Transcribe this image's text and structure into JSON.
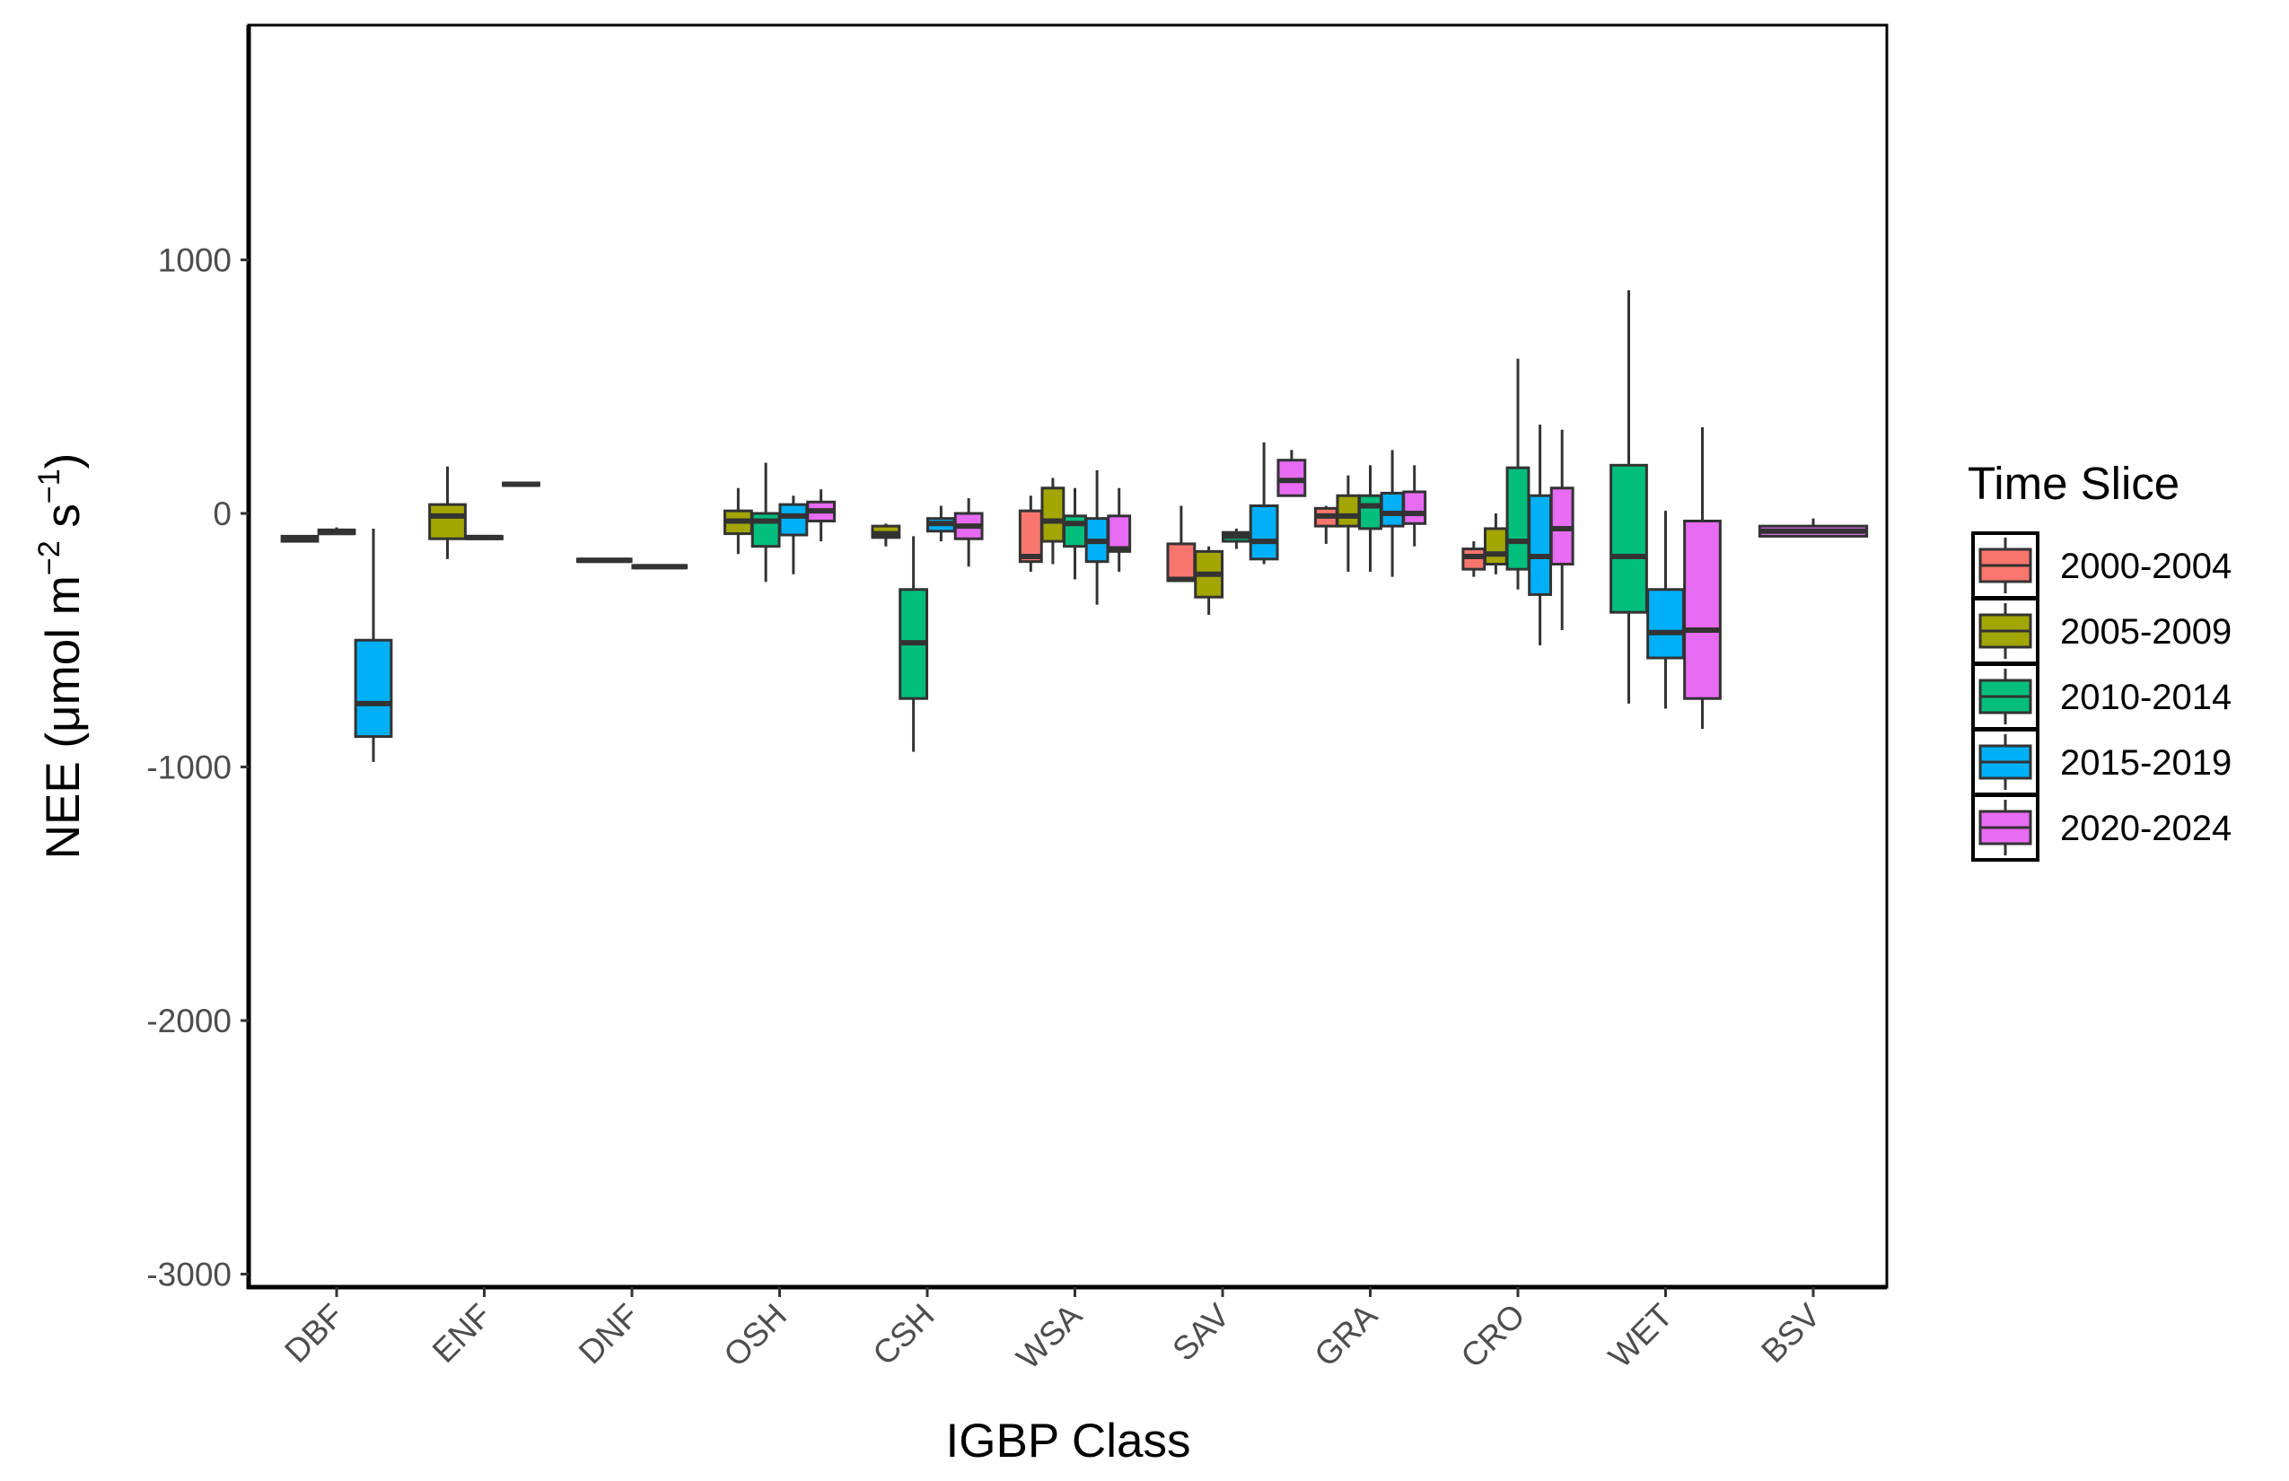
{
  "chart_data": {
    "type": "boxplot",
    "xlabel": "IGBP Class",
    "ylabel_main": "NEE (",
    "ylabel_unit": "μmol m",
    "ylabel_exp1": "−2",
    "ylabel_s": " s",
    "ylabel_exp2": "−1",
    "ylabel_close": ")",
    "ylim": [
      -3050,
      1900
    ],
    "yticks": [
      1000,
      0,
      -1000,
      -2000,
      -3000
    ],
    "ytick_labels": [
      "1000",
      "0",
      "-1000",
      "-2000",
      "-3000"
    ],
    "grid": false,
    "legend": {
      "title": "Time Slice",
      "position": "right",
      "items": [
        "2000-2004",
        "2005-2009",
        "2010-2014",
        "2015-2019",
        "2020-2024"
      ]
    },
    "colors": {
      "2000-2004": "#F8766D",
      "2005-2009": "#A3A500",
      "2010-2014": "#00BF7D",
      "2015-2019": "#00B0F6",
      "2020-2024": "#E76BF3"
    },
    "categories": [
      "DBF",
      "ENF",
      "DNF",
      "OSH",
      "CSH",
      "WSA",
      "SAV",
      "GRA",
      "CRO",
      "WET",
      "BSV"
    ],
    "boxes": [
      {
        "category": "DBF",
        "series": "2000-2004",
        "slots": 3,
        "slot": 0,
        "min": -110,
        "q1": -110,
        "median": -100,
        "q3": -90,
        "max": -90
      },
      {
        "category": "DBF",
        "series": "2005-2009",
        "slots": 3,
        "slot": 1,
        "min": -80,
        "q1": -80,
        "median": -75,
        "q3": -65,
        "max": -55
      },
      {
        "category": "DBF",
        "series": "2015-2019",
        "slots": 3,
        "slot": 2,
        "min": -980,
        "q1": -880,
        "median": -750,
        "q3": -500,
        "max": -60
      },
      {
        "category": "ENF",
        "series": "2005-2009",
        "slots": 3,
        "slot": 0,
        "min": -180,
        "q1": -100,
        "median": -10,
        "q3": 35,
        "max": 185
      },
      {
        "category": "ENF",
        "series": "2010-2014",
        "slots": 3,
        "slot": 1,
        "min": -105,
        "q1": -100,
        "median": -95,
        "q3": -90,
        "max": -85
      },
      {
        "category": "ENF",
        "series": "2015-2019",
        "slots": 3,
        "slot": 2,
        "min": 105,
        "q1": 110,
        "median": 115,
        "q3": 120,
        "max": 125
      },
      {
        "category": "DNF",
        "series": "2000-2004",
        "slots": 2,
        "slot": 0,
        "min": -190,
        "q1": -190,
        "median": -185,
        "q3": -180,
        "max": -180
      },
      {
        "category": "DNF",
        "series": "2005-2009",
        "slots": 2,
        "slot": 1,
        "min": -215,
        "q1": -215,
        "median": -210,
        "q3": -205,
        "max": -205
      },
      {
        "category": "OSH",
        "series": "2005-2009",
        "slots": 4,
        "slot": 0,
        "min": -160,
        "q1": -80,
        "median": -30,
        "q3": 10,
        "max": 100
      },
      {
        "category": "OSH",
        "series": "2010-2014",
        "slots": 4,
        "slot": 1,
        "min": -270,
        "q1": -130,
        "median": -30,
        "q3": 0,
        "max": 200
      },
      {
        "category": "OSH",
        "series": "2015-2019",
        "slots": 4,
        "slot": 2,
        "min": -240,
        "q1": -85,
        "median": -10,
        "q3": 35,
        "max": 70
      },
      {
        "category": "OSH",
        "series": "2020-2024",
        "slots": 4,
        "slot": 3,
        "min": -110,
        "q1": -30,
        "median": 10,
        "q3": 45,
        "max": 95
      },
      {
        "category": "CSH",
        "series": "2005-2009",
        "slots": 4,
        "slot": 0,
        "min": -130,
        "q1": -95,
        "median": -80,
        "q3": -50,
        "max": -40
      },
      {
        "category": "CSH",
        "series": "2010-2014",
        "slots": 4,
        "slot": 1,
        "min": -940,
        "q1": -730,
        "median": -510,
        "q3": -300,
        "max": -90
      },
      {
        "category": "CSH",
        "series": "2015-2019",
        "slots": 4,
        "slot": 2,
        "min": -110,
        "q1": -70,
        "median": -40,
        "q3": -20,
        "max": 30
      },
      {
        "category": "CSH",
        "series": "2020-2024",
        "slots": 4,
        "slot": 3,
        "min": -210,
        "q1": -100,
        "median": -50,
        "q3": 0,
        "max": 60
      },
      {
        "category": "WSA",
        "series": "2000-2004",
        "slots": 5,
        "slot": 0,
        "min": -230,
        "q1": -190,
        "median": -170,
        "q3": 10,
        "max": 70
      },
      {
        "category": "WSA",
        "series": "2005-2009",
        "slots": 5,
        "slot": 1,
        "min": -200,
        "q1": -110,
        "median": -30,
        "q3": 100,
        "max": 140
      },
      {
        "category": "WSA",
        "series": "2010-2014",
        "slots": 5,
        "slot": 2,
        "min": -260,
        "q1": -130,
        "median": -40,
        "q3": -10,
        "max": 100
      },
      {
        "category": "WSA",
        "series": "2015-2019",
        "slots": 5,
        "slot": 3,
        "min": -360,
        "q1": -190,
        "median": -110,
        "q3": -20,
        "max": 170
      },
      {
        "category": "WSA",
        "series": "2020-2024",
        "slots": 5,
        "slot": 4,
        "min": -230,
        "q1": -150,
        "median": -140,
        "q3": -10,
        "max": 100
      },
      {
        "category": "SAV",
        "series": "2000-2004",
        "slots": 4,
        "slot": 0,
        "min": -270,
        "q1": -265,
        "median": -260,
        "q3": -120,
        "max": 30
      },
      {
        "category": "SAV",
        "series": "2005-2009",
        "slots": 4,
        "slot": 1,
        "min": -400,
        "q1": -330,
        "median": -240,
        "q3": -150,
        "max": -130
      },
      {
        "category": "SAV",
        "series": "2010-2014",
        "slots": 4,
        "slot": 2,
        "min": -140,
        "q1": -110,
        "median": -90,
        "q3": -75,
        "max": -60
      },
      {
        "category": "SAV",
        "series": "2015-2019",
        "slots": 4,
        "slot": 3,
        "min": -200,
        "q1": -180,
        "median": -110,
        "q3": 30,
        "max": 280
      },
      {
        "category": "SAV",
        "series": "2020-2024",
        "slots": 4,
        "slot": 4,
        "min": 70,
        "q1": 70,
        "median": 130,
        "q3": 210,
        "max": 250
      },
      {
        "category": "GRA",
        "series": "2000-2004",
        "slots": 5,
        "slot": 0,
        "min": -120,
        "q1": -50,
        "median": -10,
        "q3": 20,
        "max": 30
      },
      {
        "category": "GRA",
        "series": "2005-2009",
        "slots": 5,
        "slot": 1,
        "min": -230,
        "q1": -50,
        "median": -10,
        "q3": 70,
        "max": 150
      },
      {
        "category": "GRA",
        "series": "2010-2014",
        "slots": 5,
        "slot": 2,
        "min": -230,
        "q1": -60,
        "median": 30,
        "q3": 70,
        "max": 190
      },
      {
        "category": "GRA",
        "series": "2015-2019",
        "slots": 5,
        "slot": 3,
        "min": -250,
        "q1": -50,
        "median": 0,
        "q3": 80,
        "max": 250
      },
      {
        "category": "GRA",
        "series": "2020-2024",
        "slots": 5,
        "slot": 4,
        "min": -130,
        "q1": -40,
        "median": 0,
        "q3": 85,
        "max": 190
      },
      {
        "category": "CRO",
        "series": "2000-2004",
        "slots": 5,
        "slot": 0,
        "min": -250,
        "q1": -220,
        "median": -170,
        "q3": -140,
        "max": -110
      },
      {
        "category": "CRO",
        "series": "2005-2009",
        "slots": 5,
        "slot": 1,
        "min": -240,
        "q1": -200,
        "median": -160,
        "q3": -60,
        "max": 0
      },
      {
        "category": "CRO",
        "series": "2010-2014",
        "slots": 5,
        "slot": 2,
        "min": -300,
        "q1": -220,
        "median": -110,
        "q3": 180,
        "max": 610
      },
      {
        "category": "CRO",
        "series": "2015-2019",
        "slots": 5,
        "slot": 3,
        "min": -520,
        "q1": -320,
        "median": -170,
        "q3": 70,
        "max": 350
      },
      {
        "category": "CRO",
        "series": "2020-2024",
        "slots": 5,
        "slot": 4,
        "min": -460,
        "q1": -200,
        "median": -60,
        "q3": 100,
        "max": 330
      },
      {
        "category": "WET",
        "series": "2010-2014",
        "slots": 3,
        "slot": 0,
        "min": -750,
        "q1": -390,
        "median": -170,
        "q3": 190,
        "max": 880
      },
      {
        "category": "WET",
        "series": "2015-2019",
        "slots": 3,
        "slot": 1,
        "min": -770,
        "q1": -570,
        "median": -470,
        "q3": -300,
        "max": 10
      },
      {
        "category": "WET",
        "series": "2020-2024",
        "slots": 3,
        "slot": 2,
        "min": -850,
        "q1": -730,
        "median": -460,
        "q3": -30,
        "max": 340
      },
      {
        "category": "BSV",
        "series": "2020-2024",
        "slots": 1,
        "slot": 0,
        "min": -90,
        "q1": -90,
        "median": -70,
        "q3": -50,
        "max": -20
      }
    ]
  }
}
